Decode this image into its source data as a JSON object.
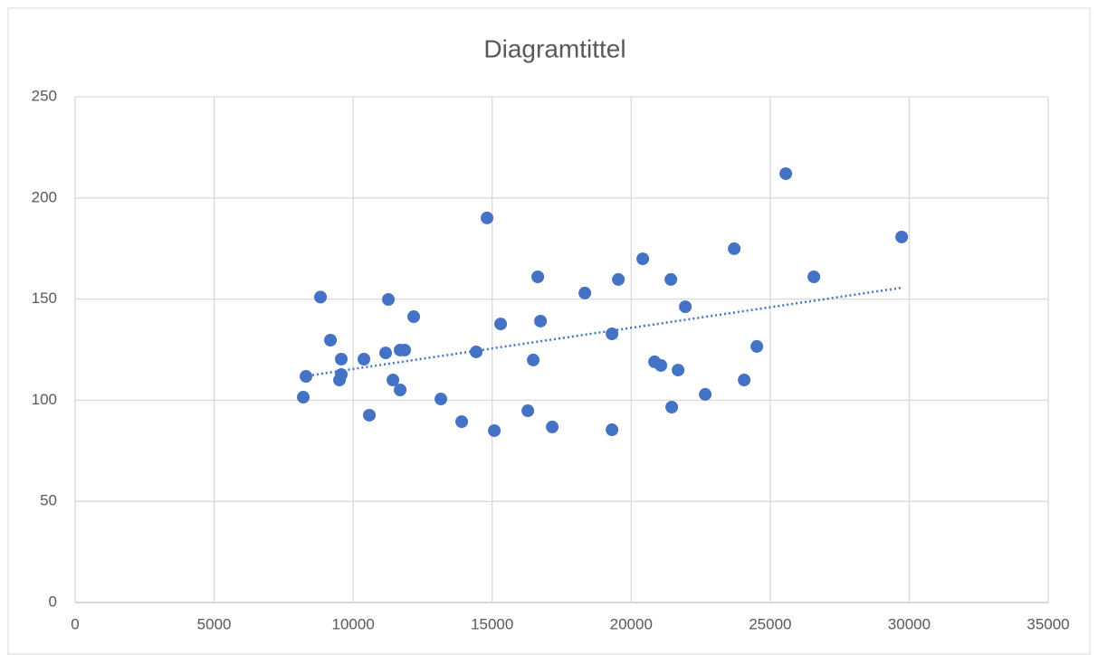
{
  "chart_data": {
    "type": "scatter",
    "title": "Diagramtittel",
    "series": [
      {
        "color": "#4472c4",
        "x": [
          8206,
          8303,
          8825,
          9183,
          9573,
          9573,
          9508,
          10387,
          10583,
          11169,
          11267,
          11430,
          11690,
          11853,
          11690,
          12178,
          13155,
          13904,
          14425,
          14816,
          15077,
          15305,
          16282,
          16477,
          16640,
          16738,
          17161,
          18333,
          19310,
          19310,
          19538,
          20417,
          20840,
          21068,
          21427,
          21459,
          21687,
          21947,
          22664,
          23706,
          24064,
          24520,
          25562,
          26571,
          29730
        ],
        "values": [
          101.5,
          111.8,
          151,
          129.7,
          120.3,
          112.7,
          110,
          120.3,
          92.6,
          123.4,
          149.8,
          110,
          124.8,
          124.8,
          105.1,
          141.3,
          100.6,
          89.4,
          123.9,
          190.1,
          85,
          137.7,
          94.8,
          119.9,
          161,
          139.1,
          86.8,
          153,
          132.8,
          85.4,
          159.7,
          169.9,
          119,
          117.2,
          159.7,
          96.6,
          114.9,
          146.2,
          102.9,
          174.9,
          110,
          126.6,
          212,
          161,
          180.7
        ]
      }
    ],
    "trendline": "linear",
    "xlim": [
      0,
      35000
    ],
    "xticks": [
      0,
      5000,
      10000,
      15000,
      20000,
      25000,
      30000,
      35000
    ],
    "ylim": [
      0,
      250
    ],
    "yticks": [
      0,
      50,
      100,
      150,
      200,
      250
    ],
    "grid": true
  }
}
